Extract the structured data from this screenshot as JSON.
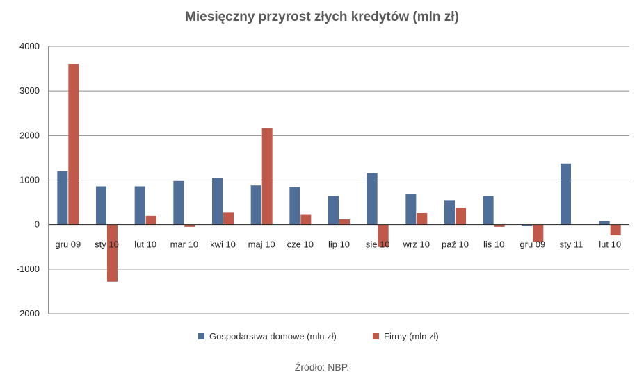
{
  "title": "Miesięczny przyrost złych kredytów (mln zł)",
  "source": "Źródło: NBP.",
  "colors": {
    "series1": "#4f6f98",
    "series2": "#c0594a",
    "grid": "#8c8c8c",
    "axis": "#222222"
  },
  "chart_data": {
    "type": "bar",
    "title": "Miesięczny przyrost złych kredytów (mln zł)",
    "xlabel": "",
    "ylabel": "",
    "ylim": [
      -2000,
      4000
    ],
    "yticks": [
      -2000,
      -1000,
      0,
      1000,
      2000,
      3000,
      4000
    ],
    "grid": true,
    "legend_position": "bottom",
    "categories": [
      "gru 09",
      "sty 10",
      "lut 10",
      "mar 10",
      "kwi 10",
      "maj 10",
      "cze 10",
      "lip 10",
      "sie 10",
      "wrz 10",
      "paź 10",
      "lis 10",
      "gru 09",
      "sty 11",
      "lut 10"
    ],
    "series": [
      {
        "name": "Gospodarstwa domowe (mln zł)",
        "color": "#4f6f98",
        "values": [
          1200,
          860,
          860,
          980,
          1050,
          880,
          840,
          640,
          1150,
          680,
          550,
          640,
          -30,
          1370,
          80
        ]
      },
      {
        "name": "Firmy (mln zł)",
        "color": "#c0594a",
        "values": [
          3610,
          -1280,
          200,
          -50,
          270,
          2170,
          220,
          120,
          -500,
          260,
          380,
          -50,
          -380,
          0,
          -240
        ]
      }
    ]
  }
}
